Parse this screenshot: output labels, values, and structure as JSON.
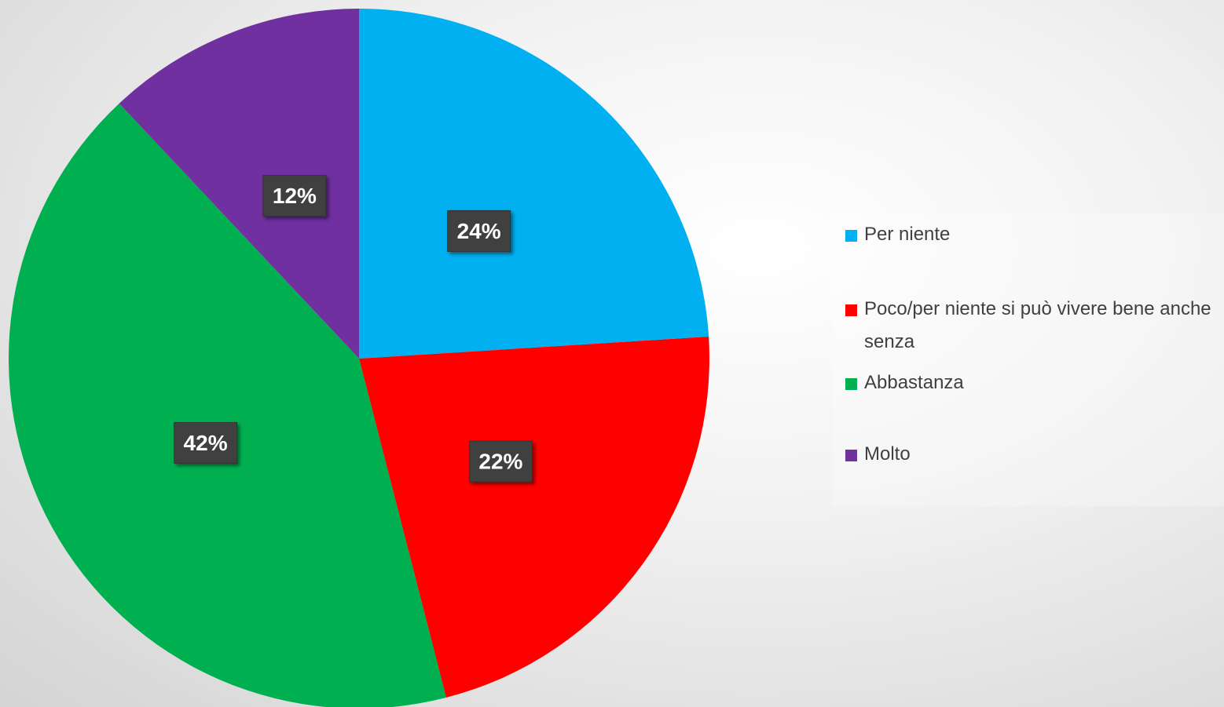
{
  "chart_data": {
    "type": "pie",
    "categories": [
      "Per niente",
      "Poco/per niente si può vivere bene anche senza",
      "Abbastanza",
      "Molto"
    ],
    "values": [
      24,
      22,
      42,
      12
    ],
    "value_labels": [
      "24%",
      "22%",
      "42%",
      "12%"
    ],
    "colors": [
      "#00b0f0",
      "#ff0000",
      "#00b050",
      "#7030a0"
    ],
    "legend": "right"
  }
}
